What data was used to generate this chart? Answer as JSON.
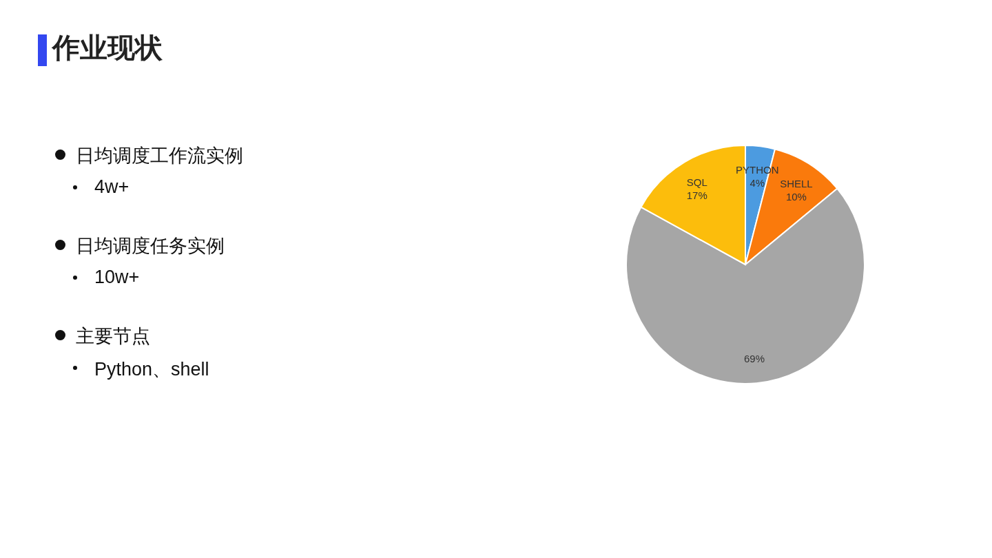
{
  "chart_data": {
    "type": "pie",
    "title": "作业现状",
    "categories": [
      "PYTHON",
      "SHELL",
      null,
      "SQL"
    ],
    "values": [
      4,
      10,
      69,
      17
    ],
    "value_labels": [
      "4%",
      "10%",
      "69%",
      "17%"
    ],
    "colors": [
      "#4c9be0",
      "#fa7a0c",
      "#a6a6a6",
      "#fcbd0c"
    ],
    "annotations": [
      "日均调度工作流实例",
      "4w+",
      "日均调度任务实例",
      "10w+",
      "主要节点",
      "Python、shell"
    ]
  }
}
